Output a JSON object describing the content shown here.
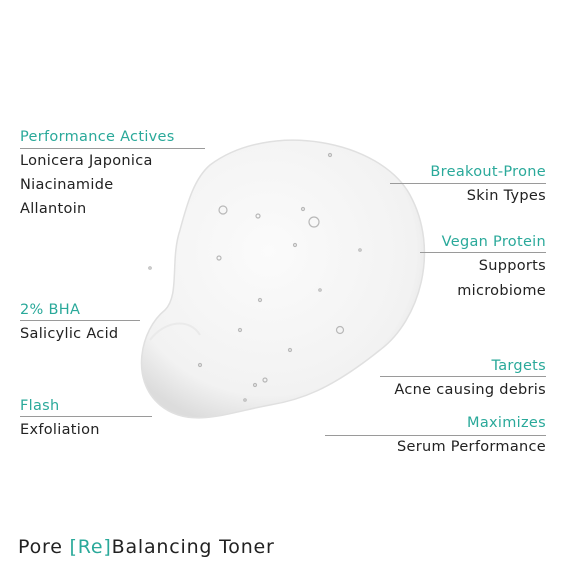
{
  "left_callouts": [
    {
      "heading": "Performance Actives",
      "lines": [
        "Lonicera Japonica",
        "Niacinamide",
        "Allantoin"
      ]
    },
    {
      "heading": "2% BHA",
      "lines": [
        "Salicylic Acid"
      ]
    },
    {
      "heading": "Flash",
      "lines": [
        "Exfoliation"
      ]
    }
  ],
  "right_callouts": [
    {
      "heading": "Breakout-Prone",
      "lines": [
        "Skin Types"
      ]
    },
    {
      "heading": "Vegan Protein",
      "lines": [
        "Supports",
        "microbiome"
      ]
    },
    {
      "heading": "Targets",
      "lines": [
        "Acne causing debris"
      ]
    },
    {
      "heading": "Maximizes",
      "lines": [
        "Serum Performance"
      ]
    }
  ],
  "footer": {
    "title_parts": [
      "Pore ",
      "[Re]",
      "Balancing Toner"
    ]
  }
}
